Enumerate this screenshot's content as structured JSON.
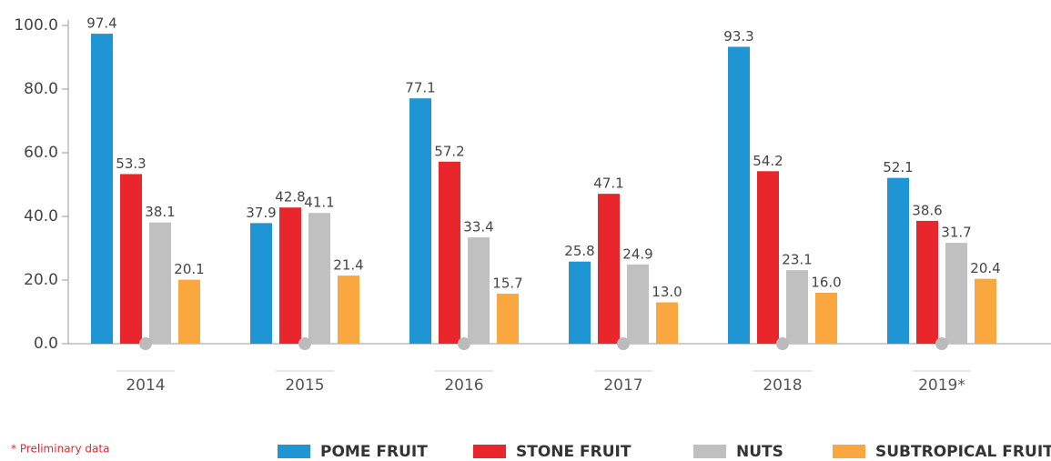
{
  "chart_data": {
    "type": "bar",
    "categories": [
      "2014",
      "2015",
      "2016",
      "2017",
      "2018",
      "2019*"
    ],
    "series": [
      {
        "name": "POME FRUIT",
        "color": "#1f95d4",
        "values": [
          97.4,
          37.9,
          77.1,
          25.8,
          93.3,
          52.1
        ],
        "value_labels": [
          "97.4",
          "37.9",
          "77.1",
          "25.8",
          "93.3",
          "52.1"
        ]
      },
      {
        "name": "STONE FRUIT",
        "color": "#e8262b",
        "values": [
          53.3,
          42.8,
          57.2,
          47.1,
          54.2,
          38.6
        ],
        "value_labels": [
          "53.3",
          "42.8",
          "57.2",
          "47.1",
          "54.2",
          "38.6"
        ]
      },
      {
        "name": "NUTS",
        "color": "#c0c0c0",
        "values": [
          38.1,
          41.1,
          33.4,
          24.9,
          23.1,
          31.7
        ],
        "value_labels": [
          "38.1",
          "41.1",
          "33.4",
          "24.9",
          "23.1",
          "31.7"
        ]
      },
      {
        "name": "SUBTROPICAL FRUIT",
        "color": "#f9a73e",
        "values": [
          20.1,
          21.4,
          15.7,
          13.0,
          16.0,
          20.4
        ],
        "value_labels": [
          "20.1",
          "21.4",
          "15.7",
          "13.0",
          "16.0",
          "20.4"
        ]
      }
    ],
    "ylim": [
      0,
      100
    ],
    "yticks": [
      {
        "value": 0,
        "label": "0.0"
      },
      {
        "value": 20,
        "label": "20.0"
      },
      {
        "value": 40,
        "label": "40.0"
      },
      {
        "value": 60,
        "label": "60.0"
      },
      {
        "value": 80,
        "label": "80.0"
      },
      {
        "value": 100,
        "label": "100.0"
      }
    ],
    "footnote": "* Preliminary data",
    "legend": "bottom"
  }
}
